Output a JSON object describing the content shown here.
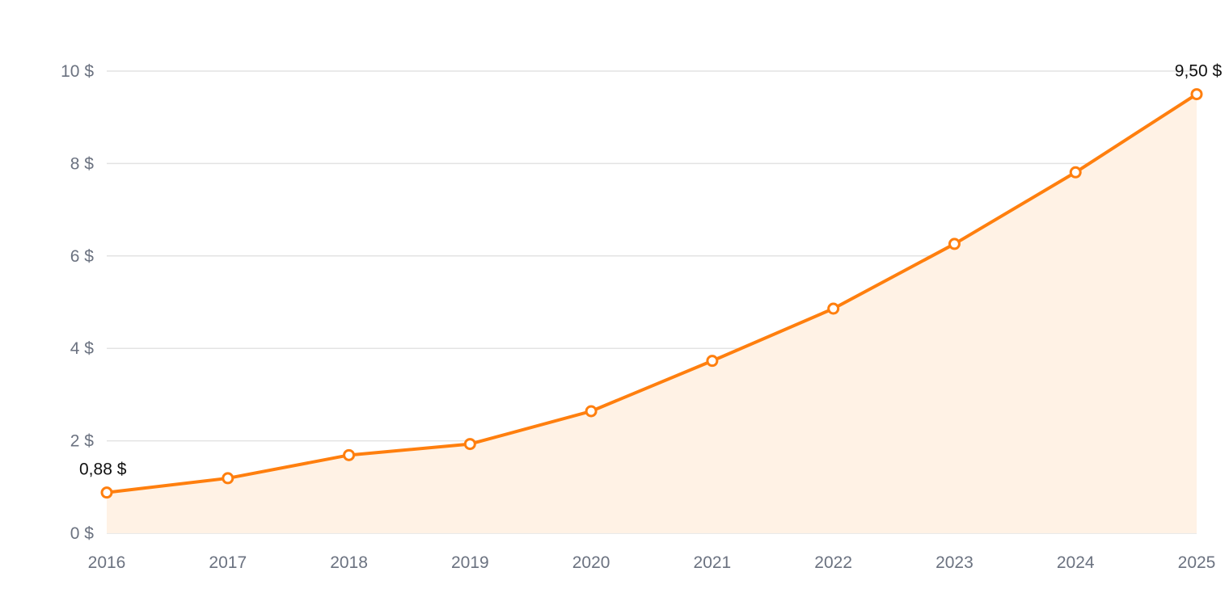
{
  "chart_data": {
    "type": "area",
    "title": "",
    "xlabel": "",
    "ylabel": "",
    "categories": [
      "2016",
      "2017",
      "2018",
      "2019",
      "2020",
      "2021",
      "2022",
      "2023",
      "2024",
      "2025"
    ],
    "series": [
      {
        "values": [
          0.88,
          1.19,
          1.69,
          1.93,
          2.64,
          3.73,
          4.86,
          6.26,
          7.81,
          9.5
        ],
        "color": "#ff7f0e",
        "fill_color": "#fff2e5"
      }
    ],
    "ylim": [
      0,
      10
    ],
    "y_ticks": [
      0,
      2,
      4,
      6,
      8,
      10
    ],
    "y_tick_labels": [
      "0 $",
      "2 $",
      "4 $",
      "6 $",
      "8 $",
      "10 $"
    ],
    "data_labels": [
      {
        "category": "2016",
        "text": "0,88 $"
      },
      {
        "category": "2025",
        "text": "9,50 $"
      }
    ],
    "grid": true,
    "legend": "none"
  }
}
